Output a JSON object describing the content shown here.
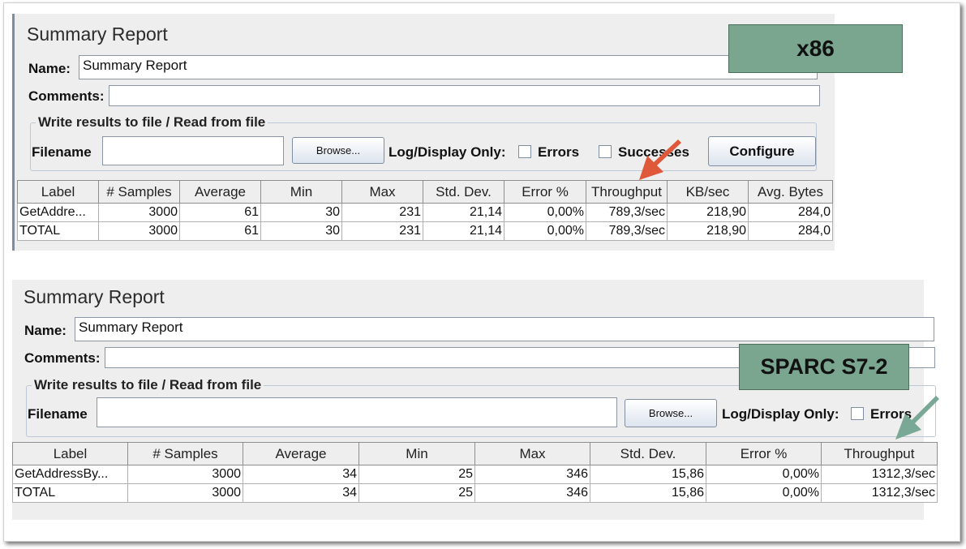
{
  "report1": {
    "title": "Summary Report",
    "name_label": "Name:",
    "name_value": "Summary Report",
    "comments_label": "Comments:",
    "group_legend": "Write results to file / Read from file",
    "filename_label": "Filename",
    "browse_label": "Browse...",
    "logdisplay_label": "Log/Display Only:",
    "errors_label": "Errors",
    "successes_label": "Successes",
    "configure_label": "Configure",
    "columns": [
      "Label",
      "# Samples",
      "Average",
      "Min",
      "Max",
      "Std. Dev.",
      "Error %",
      "Throughput",
      "KB/sec",
      "Avg. Bytes"
    ],
    "rows": [
      [
        "GetAddre...",
        "3000",
        "61",
        "30",
        "231",
        "21,14",
        "0,00%",
        "789,3/sec",
        "218,90",
        "284,0"
      ],
      [
        "TOTAL",
        "3000",
        "61",
        "30",
        "231",
        "21,14",
        "0,00%",
        "789,3/sec",
        "218,90",
        "284,0"
      ]
    ],
    "tag": "x86",
    "arrow_color": "#e0583a"
  },
  "report2": {
    "title": "Summary Report",
    "name_label": "Name:",
    "name_value": "Summary Report",
    "comments_label": "Comments:",
    "group_legend": "Write results to file / Read from file",
    "filename_label": "Filename",
    "browse_label": "Browse...",
    "logdisplay_label": "Log/Display Only:",
    "errors_label": "Errors",
    "columns": [
      "Label",
      "# Samples",
      "Average",
      "Min",
      "Max",
      "Std. Dev.",
      "Error %",
      "Throughput"
    ],
    "rows": [
      [
        "GetAddressBy...",
        "3000",
        "34",
        "25",
        "346",
        "15,86",
        "0,00%",
        "1312,3/sec"
      ],
      [
        "TOTAL",
        "3000",
        "34",
        "25",
        "346",
        "15,86",
        "0,00%",
        "1312,3/sec"
      ]
    ],
    "tag": "SPARC S7-2",
    "arrow_color": "#79a896"
  }
}
